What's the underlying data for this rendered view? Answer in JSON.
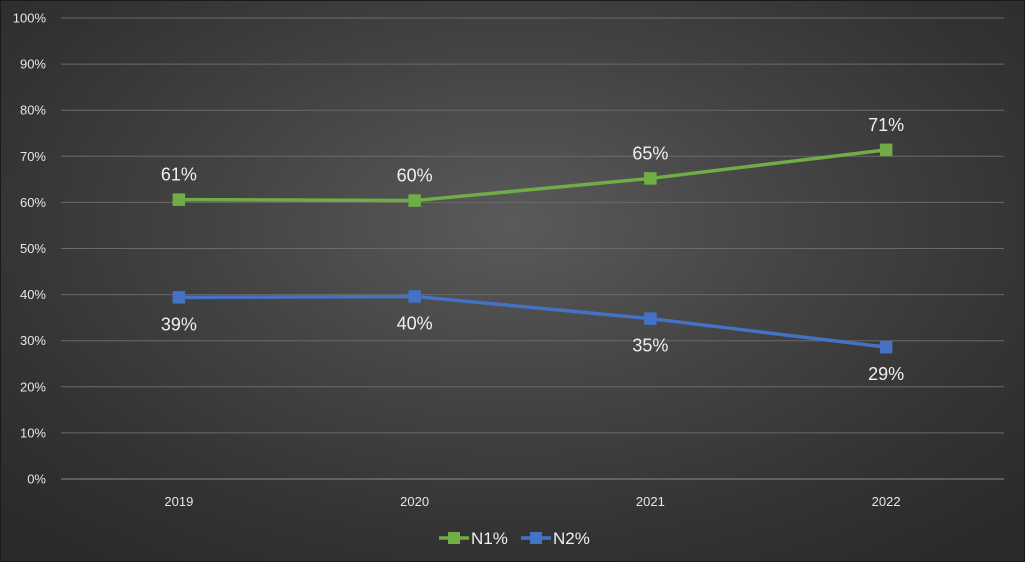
{
  "chart_data": {
    "type": "line",
    "title": "",
    "xlabel": "",
    "ylabel": "",
    "categories": [
      "2019",
      "2020",
      "2021",
      "2022"
    ],
    "y_ticks": [
      "0%",
      "10%",
      "20%",
      "30%",
      "40%",
      "50%",
      "60%",
      "70%",
      "80%",
      "90%",
      "100%"
    ],
    "ylim": [
      0,
      100
    ],
    "grid": true,
    "legend_position": "bottom",
    "series": [
      {
        "name": "N1%",
        "color": "#70ad47",
        "marker": "square",
        "values": [
          60.6,
          60.4,
          65.2,
          71.4
        ],
        "labels": [
          "61%",
          "60%",
          "65%",
          "71%"
        ],
        "label_position": "above"
      },
      {
        "name": "N2%",
        "color": "#4472c4",
        "marker": "square",
        "values": [
          39.4,
          39.6,
          34.8,
          28.6
        ],
        "labels": [
          "39%",
          "40%",
          "35%",
          "29%"
        ],
        "label_position": "below"
      }
    ]
  }
}
